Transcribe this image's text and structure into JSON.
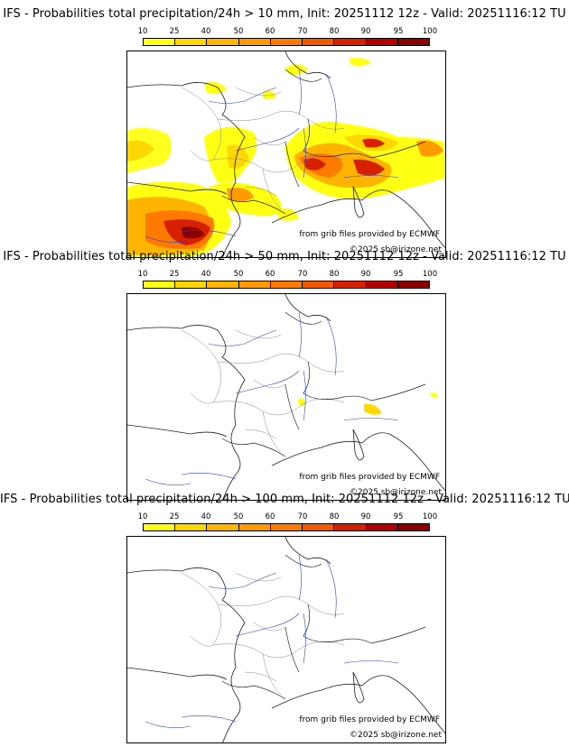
{
  "legend_ticks": [
    "10",
    "25",
    "40",
    "50",
    "60",
    "70",
    "80",
    "90",
    "95",
    "100"
  ],
  "legend_colors": [
    "#ffff14",
    "#ffd700",
    "#ffb400",
    "#ff9b00",
    "#ff7a00",
    "#f25800",
    "#d62000",
    "#b40000",
    "#8a0000",
    "#5a0000"
  ],
  "panels": [
    {
      "title": "IFS - Probabilities total precipitation/24h > 10 mm, Init: 20251112 12z - Valid: 20251116:12 TU",
      "credit_source": "from grib files provided by ECMWF",
      "credit_copyright": "©2025 sb@irizone.net",
      "precip_regions": [
        "north-atlantic Spain",
        "central-south France",
        "south-east France and Alps",
        "northern Italy",
        "south-west Spain"
      ]
    },
    {
      "title": "IFS - Probabilities total precipitation/24h > 50 mm, Init: 20251112 12z - Valid: 20251116:12 TU",
      "credit_source": "from grib files provided by ECMWF",
      "credit_copyright": "©2025 sb@irizone.net",
      "precip_regions": [
        "south-east France",
        "north-west Italy"
      ]
    },
    {
      "title": "IFS - Probabilities total precipitation/24h > 100 mm, Init: 20251112 12z - Valid: 20251116:12 TU",
      "credit_source": "from grib files provided by ECMWF",
      "credit_copyright": "©2025 sb@irizone.net",
      "precip_regions": []
    }
  ]
}
